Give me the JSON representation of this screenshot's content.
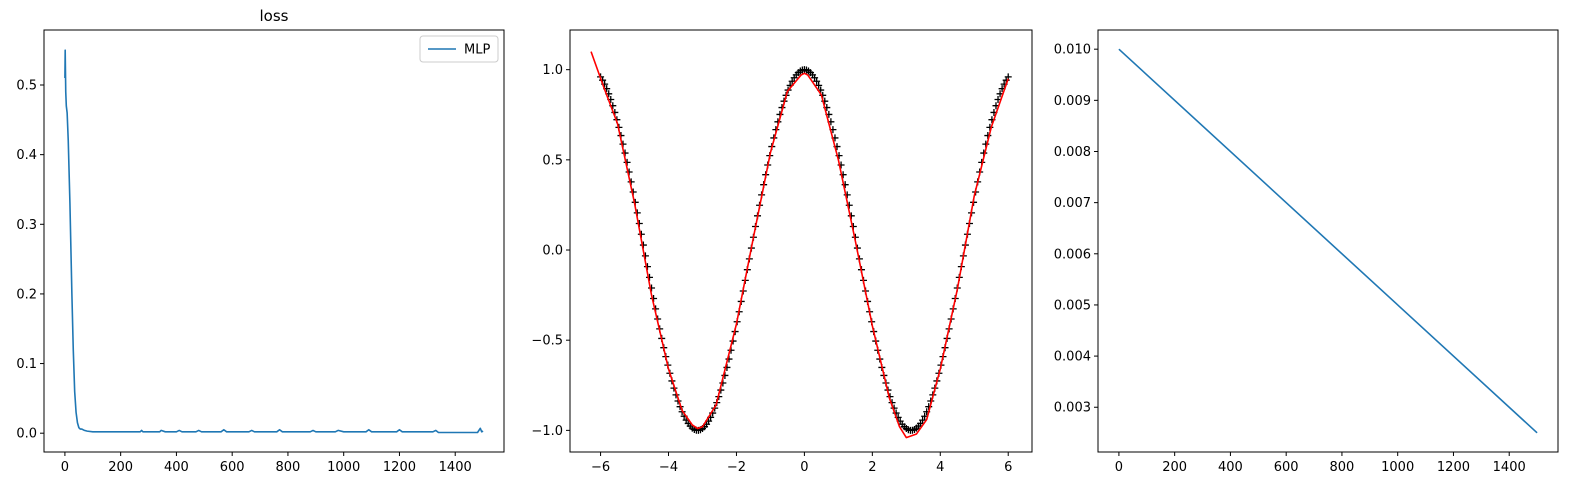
{
  "chart_data": [
    {
      "type": "line",
      "title": "loss",
      "xlabel": "",
      "ylabel": "",
      "xlim": [
        -75,
        1575
      ],
      "ylim": [
        -0.027,
        0.579
      ],
      "grid": false,
      "legend": {
        "placement": "top-right",
        "entries": [
          "MLP"
        ]
      },
      "xticks": [
        0,
        200,
        400,
        600,
        800,
        1000,
        1200,
        1400
      ],
      "xtick_labels": [
        "0",
        "200",
        "400",
        "600",
        "800",
        "1000",
        "1200",
        "1400"
      ],
      "yticks": [
        0.0,
        0.1,
        0.2,
        0.3,
        0.4,
        0.5
      ],
      "ytick_labels": [
        "0.0",
        "0.1",
        "0.2",
        "0.3",
        "0.4",
        "0.5"
      ],
      "series": [
        {
          "name": "MLP",
          "color": "#1f77b4",
          "x": [
            0,
            1,
            3,
            5,
            8,
            12,
            18,
            25,
            30,
            35,
            40,
            45,
            50,
            55,
            60,
            65,
            70,
            80,
            100,
            130,
            170,
            200,
            240,
            270,
            275,
            280,
            300,
            340,
            345,
            360,
            400,
            410,
            420,
            470,
            480,
            490,
            520,
            560,
            570,
            580,
            620,
            660,
            670,
            680,
            720,
            760,
            770,
            780,
            820,
            880,
            890,
            900,
            950,
            970,
            980,
            1000,
            1050,
            1080,
            1090,
            1100,
            1150,
            1190,
            1200,
            1210,
            1260,
            1320,
            1330,
            1340,
            1400,
            1480,
            1490,
            1495,
            1500
          ],
          "y": [
            0.51,
            0.55,
            0.49,
            0.47,
            0.46,
            0.42,
            0.33,
            0.2,
            0.12,
            0.06,
            0.03,
            0.015,
            0.008,
            0.006,
            0.006,
            0.005,
            0.004,
            0.003,
            0.002,
            0.002,
            0.002,
            0.002,
            0.002,
            0.002,
            0.004,
            0.002,
            0.002,
            0.002,
            0.004,
            0.002,
            0.002,
            0.004,
            0.002,
            0.002,
            0.004,
            0.002,
            0.002,
            0.002,
            0.005,
            0.002,
            0.002,
            0.002,
            0.004,
            0.002,
            0.002,
            0.002,
            0.005,
            0.002,
            0.002,
            0.002,
            0.004,
            0.002,
            0.002,
            0.002,
            0.004,
            0.002,
            0.002,
            0.002,
            0.005,
            0.002,
            0.002,
            0.002,
            0.005,
            0.002,
            0.002,
            0.002,
            0.004,
            0.001,
            0.001,
            0.001,
            0.007,
            0.002,
            0.003
          ]
        }
      ]
    },
    {
      "type": "line",
      "title": "",
      "xlabel": "",
      "ylabel": "",
      "xlim": [
        -6.9,
        6.7
      ],
      "ylim": [
        -1.12,
        1.22
      ],
      "grid": false,
      "xticks": [
        -6,
        -4,
        -2,
        0,
        2,
        4,
        6
      ],
      "xtick_labels": [
        "−6",
        "−4",
        "−2",
        "0",
        "2",
        "4",
        "6"
      ],
      "yticks": [
        -1.0,
        -0.5,
        0.0,
        0.5,
        1.0
      ],
      "ytick_labels": [
        "−1.0",
        "−0.5",
        "0.0",
        "0.5",
        "1.0"
      ],
      "series": [
        {
          "kind": "scatter",
          "marker": "+",
          "color": "#000000",
          "function": "cos(x)",
          "x_start": -6.0,
          "x_end": 6.0,
          "count": 201
        },
        {
          "kind": "line",
          "color": "#ff0000",
          "x": [
            -6.28,
            -5.9,
            -5.5,
            -5.0,
            -4.5,
            -4.0,
            -3.6,
            -3.3,
            -3.14,
            -3.0,
            -2.6,
            -2.0,
            -1.5,
            -1.0,
            -0.5,
            -0.1,
            0.0,
            0.1,
            0.5,
            1.0,
            1.5,
            2.0,
            2.5,
            2.8,
            3.0,
            3.3,
            3.6,
            4.0,
            4.5,
            5.0,
            5.5,
            6.0
          ],
          "y": [
            1.1,
            0.9,
            0.7,
            0.26,
            -0.25,
            -0.66,
            -0.89,
            -0.97,
            -0.99,
            -0.98,
            -0.86,
            -0.41,
            0.07,
            0.54,
            0.88,
            0.97,
            0.98,
            0.97,
            0.86,
            0.5,
            0.05,
            -0.42,
            -0.82,
            -0.98,
            -1.04,
            -1.02,
            -0.94,
            -0.66,
            -0.22,
            0.3,
            0.68,
            0.95
          ]
        }
      ]
    },
    {
      "type": "line",
      "title": "",
      "xlabel": "",
      "ylabel": "",
      "xlim": [
        -75,
        1575
      ],
      "ylim": [
        0.002125,
        0.010375
      ],
      "grid": false,
      "xticks": [
        0,
        200,
        400,
        600,
        800,
        1000,
        1200,
        1400
      ],
      "xtick_labels": [
        "0",
        "200",
        "400",
        "600",
        "800",
        "1000",
        "1200",
        "1400"
      ],
      "yticks": [
        0.003,
        0.004,
        0.005,
        0.006,
        0.007,
        0.008,
        0.009,
        0.01
      ],
      "ytick_labels": [
        "0.003",
        "0.004",
        "0.005",
        "0.006",
        "0.007",
        "0.008",
        "0.009",
        "0.010"
      ],
      "series": [
        {
          "color": "#1f77b4",
          "x": [
            0,
            1500
          ],
          "y": [
            0.01,
            0.0025
          ]
        }
      ]
    }
  ]
}
